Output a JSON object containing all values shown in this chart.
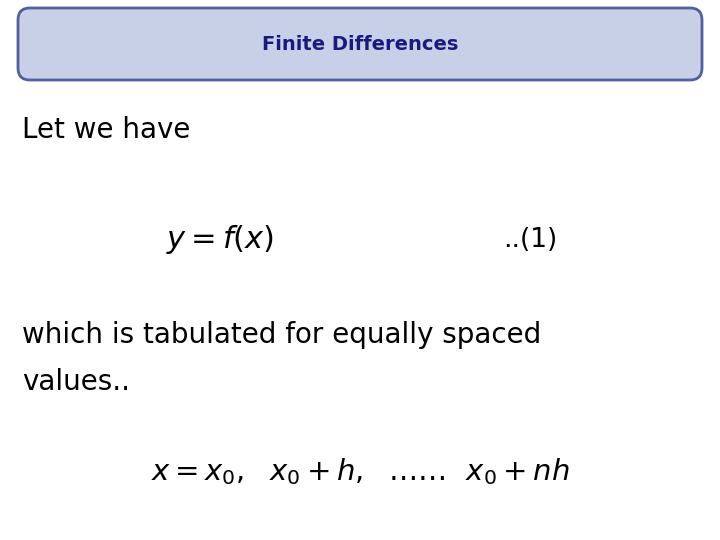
{
  "title": "Finite Differences",
  "title_color": "#1a1a7e",
  "title_bg_color": "#c8d0e8",
  "title_border_color": "#5060a0",
  "bg_color": "#ffffff",
  "text_let_we_have": "Let we have",
  "formula1": "$y = f(x)$",
  "label1": "..(1)",
  "text_which_line1": "which is tabulated for equally spaced",
  "text_which_line2": "values..",
  "formula2": "$x = x_0,\\ \\ x_0 + h,\\ \\ \\ldots\\ldots\\ \\ x_0 + nh$",
  "text_color": "#000000",
  "formula_color": "#000000",
  "title_fontsize": 14,
  "body_fontsize": 20,
  "formula1_fontsize": 22,
  "label1_fontsize": 19,
  "formula2_fontsize": 21
}
